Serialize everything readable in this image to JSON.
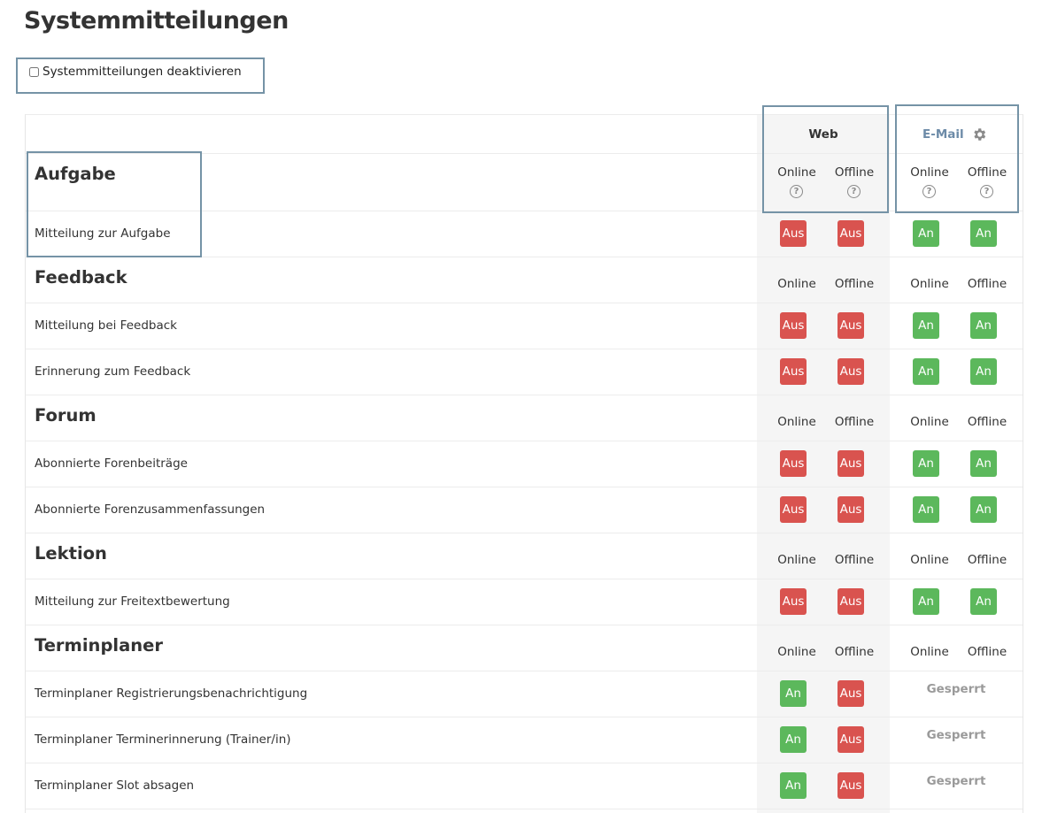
{
  "page": {
    "title": "Systemmitteilungen",
    "disable_label": "Systemmitteilungen deaktivieren",
    "disable_checked": false
  },
  "columns": {
    "web": "Web",
    "email": "E-Mail",
    "online": "Online",
    "offline": "Offline",
    "help_glyph": "?"
  },
  "icons": {
    "email_settings": "gear-icon",
    "help": "question-circle-icon"
  },
  "colors": {
    "off": "#d9534f",
    "on": "#5cb85c",
    "email_header": "#6d8ba8",
    "highlight_frame": "#7593a6"
  },
  "sections": [
    {
      "title": "Aufgabe",
      "items": [
        {
          "label": "Mitteilung zur Aufgabe",
          "web_online": "Aus",
          "web_offline": "Aus",
          "email_online": "An",
          "email_offline": "An"
        }
      ]
    },
    {
      "title": "Feedback",
      "items": [
        {
          "label": "Mitteilung bei Feedback",
          "web_online": "Aus",
          "web_offline": "Aus",
          "email_online": "An",
          "email_offline": "An"
        },
        {
          "label": "Erinnerung zum Feedback",
          "web_online": "Aus",
          "web_offline": "Aus",
          "email_online": "An",
          "email_offline": "An"
        }
      ]
    },
    {
      "title": "Forum",
      "items": [
        {
          "label": "Abonnierte Forenbeiträge",
          "web_online": "Aus",
          "web_offline": "Aus",
          "email_online": "An",
          "email_offline": "An"
        },
        {
          "label": "Abonnierte Forenzusammenfassungen",
          "web_online": "Aus",
          "web_offline": "Aus",
          "email_online": "An",
          "email_offline": "An"
        }
      ]
    },
    {
      "title": "Lektion",
      "items": [
        {
          "label": "Mitteilung zur Freitextbewertung",
          "web_online": "Aus",
          "web_offline": "Aus",
          "email_online": "An",
          "email_offline": "An"
        }
      ]
    },
    {
      "title": "Terminplaner",
      "items": [
        {
          "label": "Terminplaner Registrierungsbenachrichtigung",
          "web_online": "An",
          "web_offline": "Aus",
          "email_locked": "Gesperrt"
        },
        {
          "label": "Terminplaner Terminerinnerung (Trainer/in)",
          "web_online": "An",
          "web_offline": "Aus",
          "email_locked": "Gesperrt"
        },
        {
          "label": "Terminplaner Slot absagen",
          "web_online": "An",
          "web_offline": "Aus",
          "email_locked": "Gesperrt"
        }
      ]
    }
  ]
}
